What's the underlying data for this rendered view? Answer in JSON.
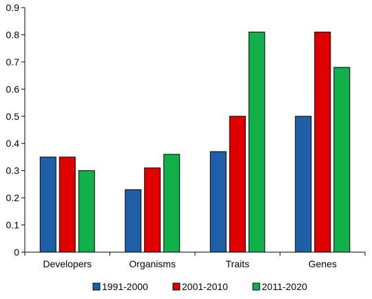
{
  "chart_data": {
    "type": "bar",
    "categories": [
      "Developers",
      "Organisms",
      "Traits",
      "Genes"
    ],
    "series": [
      {
        "name": "1991-2000",
        "color": "#1f5fa8",
        "values": [
          0.35,
          0.23,
          0.37,
          0.5
        ]
      },
      {
        "name": "2001-2010",
        "color": "#e00000",
        "values": [
          0.35,
          0.31,
          0.5,
          0.81
        ]
      },
      {
        "name": "2011-2020",
        "color": "#12b04a",
        "values": [
          0.3,
          0.36,
          0.81,
          0.68
        ]
      }
    ],
    "ylim": [
      0,
      0.9
    ],
    "yticks": [
      "0",
      "0.1",
      "0.2",
      "0.3",
      "0.4",
      "0.5",
      "0.6",
      "0.7",
      "0.8",
      "0.9"
    ],
    "grid": false,
    "legend_position": "bottom",
    "title": "",
    "xlabel": "",
    "ylabel": ""
  }
}
